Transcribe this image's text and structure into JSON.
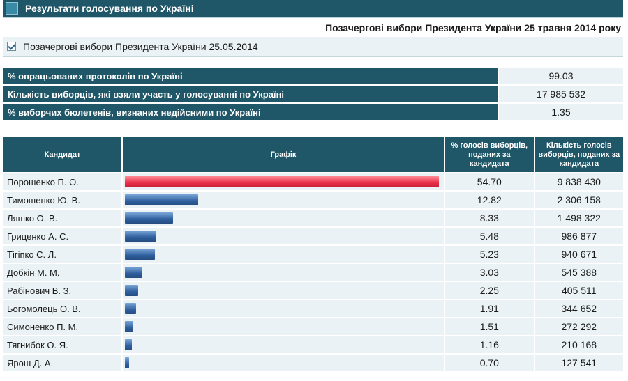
{
  "header": {
    "title": "Результати голосування по Україні",
    "subtitle": "Позачергові вибори Президента України 25 травня 2014 року",
    "election_checkbox_label": "Позачергові вибори Президента України 25.05.2014"
  },
  "stats": [
    {
      "label": "% опрацьованих протоколів по Україні",
      "value": "99.03"
    },
    {
      "label": "Кількість виборців, які взяли участь у голосуванні по Україні",
      "value": "17 985 532"
    },
    {
      "label": "% виборчих бюлетенів, визнаних недійсними по Україні",
      "value": "1.35"
    }
  ],
  "results_table": {
    "headers": {
      "candidate": "Кандидат",
      "graph": "Графік",
      "percent": "% голосів виборців, поданих за кандидата",
      "count": "Кількість голосів виборців, поданих за кандидата"
    },
    "rows": [
      {
        "name": "Порошенко П. О.",
        "percent": "54.70",
        "count": "9 838 430"
      },
      {
        "name": "Тимошенко Ю. В.",
        "percent": "12.82",
        "count": "2 306 158"
      },
      {
        "name": "Ляшко О. В.",
        "percent": "8.33",
        "count": "1 498 322"
      },
      {
        "name": "Гриценко А. С.",
        "percent": "5.48",
        "count": "986 877"
      },
      {
        "name": "Тігіпко С. Л.",
        "percent": "5.23",
        "count": "940 671"
      },
      {
        "name": "Добкін М. М.",
        "percent": "3.03",
        "count": "545 388"
      },
      {
        "name": "Рабінович В. З.",
        "percent": "2.25",
        "count": "405 511"
      },
      {
        "name": "Богомолець О. В.",
        "percent": "1.91",
        "count": "344 652"
      },
      {
        "name": "Симоненко П. М.",
        "percent": "1.51",
        "count": "272 292"
      },
      {
        "name": "Тягнибок О. Я.",
        "percent": "1.16",
        "count": "210 168"
      },
      {
        "name": "Ярош Д. А.",
        "percent": "0.70",
        "count": "127 541"
      }
    ]
  },
  "colors": {
    "header_bg": "#1f5668",
    "row_bg": "#eaf2f5",
    "lead_bar": "#e8304a",
    "bar": "#2f5f9e"
  }
}
